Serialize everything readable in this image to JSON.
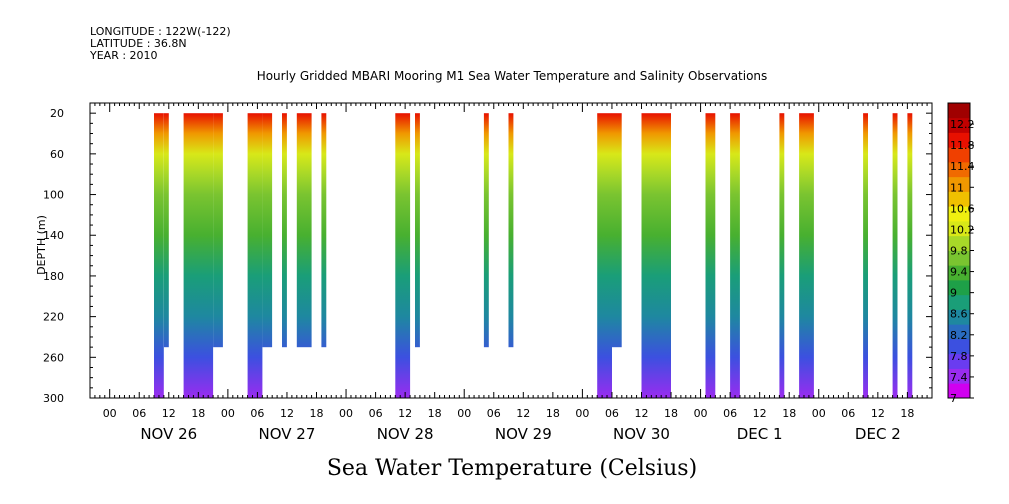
{
  "header": {
    "longitude": "LONGITUDE : 122W(-122)",
    "latitude": "LATITUDE : 36.8N",
    "year": "YEAR : 2010"
  },
  "chart_data": {
    "type": "heatmap",
    "title": "Hourly Gridded MBARI Mooring M1 Sea Water Temperature and Salinity Observations",
    "xlabel": "Sea Water Temperature (Celsius)",
    "ylabel": "DEPTH (m)",
    "x_start": "2010-11-25T20:00",
    "x_end": "2010-12-02T23:00",
    "y_ticks": [
      20,
      60,
      100,
      140,
      180,
      220,
      260,
      300
    ],
    "ylim": [
      300,
      10
    ],
    "x_hour_ticks": [
      "00",
      "06",
      "12",
      "18"
    ],
    "x_day_labels": [
      "NOV 26",
      "NOV 27",
      "NOV 28",
      "NOV 29",
      "NOV 30",
      "DEC  1",
      "DEC  2"
    ],
    "colorbar": {
      "levels": [
        7,
        7.4,
        7.8,
        8.2,
        8.6,
        9,
        9.4,
        9.8,
        10.2,
        10.6,
        11,
        11.4,
        11.8,
        12.2
      ],
      "label_values": [
        "7",
        "7.4",
        "7.8",
        "8.2",
        "8.6",
        "9",
        "9.4",
        "9.8",
        "10.2",
        "10.6",
        "11",
        "11.4",
        "11.8",
        "12.2"
      ],
      "colors": [
        "#d000f0",
        "#9a2cf0",
        "#6a3cf0",
        "#3c50e0",
        "#2a6cc0",
        "#1e88a0",
        "#1a9e78",
        "#1ea048",
        "#48b030",
        "#7ac430",
        "#a8d828",
        "#d8e818",
        "#f0f010",
        "#f0c000",
        "#f09800",
        "#f06a00",
        "#f04000",
        "#e81000",
        "#c00000",
        "#a00000"
      ]
    },
    "observation_blocks": [
      {
        "start": "2010-11-26T09:00",
        "end": "2010-11-26T11:00",
        "depth_max": 300
      },
      {
        "start": "2010-11-26T11:00",
        "end": "2010-11-26T12:00",
        "depth_max": 250
      },
      {
        "start": "2010-11-26T15:00",
        "end": "2010-11-26T21:00",
        "depth_max": 300
      },
      {
        "start": "2010-11-26T21:00",
        "end": "2010-11-26T23:00",
        "depth_max": 250
      },
      {
        "start": "2010-11-27T04:00",
        "end": "2010-11-27T07:00",
        "depth_max": 300
      },
      {
        "start": "2010-11-27T07:00",
        "end": "2010-11-27T09:00",
        "depth_max": 250
      },
      {
        "start": "2010-11-27T11:00",
        "end": "2010-11-27T12:00",
        "depth_max": 250
      },
      {
        "start": "2010-11-27T14:00",
        "end": "2010-11-27T17:00",
        "depth_max": 250
      },
      {
        "start": "2010-11-27T19:00",
        "end": "2010-11-27T20:00",
        "depth_max": 250
      },
      {
        "start": "2010-11-28T10:00",
        "end": "2010-11-28T13:00",
        "depth_max": 300
      },
      {
        "start": "2010-11-28T14:00",
        "end": "2010-11-28T15:00",
        "depth_max": 250
      },
      {
        "start": "2010-11-29T04:00",
        "end": "2010-11-29T05:00",
        "depth_max": 250
      },
      {
        "start": "2010-11-29T09:00",
        "end": "2010-11-29T10:00",
        "depth_max": 250
      },
      {
        "start": "2010-11-30T03:00",
        "end": "2010-11-30T06:00",
        "depth_max": 300
      },
      {
        "start": "2010-11-30T06:00",
        "end": "2010-11-30T08:00",
        "depth_max": 250
      },
      {
        "start": "2010-11-30T12:00",
        "end": "2010-11-30T18:00",
        "depth_max": 300
      },
      {
        "start": "2010-12-01T01:00",
        "end": "2010-12-01T03:00",
        "depth_max": 300
      },
      {
        "start": "2010-12-01T06:00",
        "end": "2010-12-01T08:00",
        "depth_max": 300
      },
      {
        "start": "2010-12-01T16:00",
        "end": "2010-12-01T17:00",
        "depth_max": 300
      },
      {
        "start": "2010-12-01T20:00",
        "end": "2010-12-01T23:00",
        "depth_max": 300
      },
      {
        "start": "2010-12-02T09:00",
        "end": "2010-12-02T10:00",
        "depth_max": 300
      },
      {
        "start": "2010-12-02T15:00",
        "end": "2010-12-02T16:00",
        "depth_max": 300
      },
      {
        "start": "2010-12-02T18:00",
        "end": "2010-12-02T19:00",
        "depth_max": 300
      }
    ],
    "temperature_profile": [
      {
        "depth": 20,
        "value": 11.8
      },
      {
        "depth": 40,
        "value": 11.0
      },
      {
        "depth": 60,
        "value": 10.2
      },
      {
        "depth": 80,
        "value": 9.8
      },
      {
        "depth": 100,
        "value": 9.6
      },
      {
        "depth": 140,
        "value": 9.3
      },
      {
        "depth": 180,
        "value": 8.9
      },
      {
        "depth": 220,
        "value": 8.5
      },
      {
        "depth": 260,
        "value": 8.0
      },
      {
        "depth": 300,
        "value": 7.3
      }
    ]
  }
}
